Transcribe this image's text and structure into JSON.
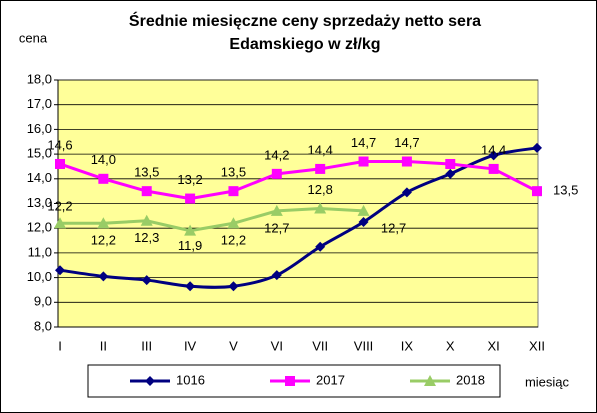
{
  "chart_data": {
    "type": "line",
    "title": "Średnie miesięczne ceny sprzedaży netto sera",
    "subtitle": "Edamskiego w zł/kg",
    "y_label": "cena",
    "x_label": "miesiąc",
    "categories": [
      "I",
      "II",
      "III",
      "IV",
      "V",
      "VI",
      "VII",
      "VIII",
      "IX",
      "X",
      "XI",
      "XII"
    ],
    "series": [
      {
        "name": "1016",
        "color": "#000080",
        "marker": "diamond",
        "smooth": true,
        "values": [
          10.3,
          10.05,
          9.9,
          9.65,
          9.65,
          10.1,
          11.25,
          12.25,
          13.45,
          14.2,
          14.95,
          15.25
        ]
      },
      {
        "name": "2017",
        "color": "#ff00ff",
        "marker": "square",
        "values": [
          14.6,
          14.0,
          13.5,
          13.2,
          13.5,
          14.2,
          14.4,
          14.7,
          14.7,
          14.6,
          14.4,
          13.5
        ],
        "value_labels": [
          "14,6",
          "14,0",
          "13,5",
          "13,2",
          "13,5",
          "14,2",
          "14,4",
          "14,7",
          "14,7",
          null,
          "14,4",
          "13,5"
        ]
      },
      {
        "name": "2018",
        "color": "#99cc66",
        "marker": "triangle",
        "values": [
          12.2,
          12.2,
          12.3,
          11.9,
          12.2,
          12.7,
          12.8,
          12.7,
          null,
          null,
          null,
          null
        ],
        "value_labels": [
          "12,2",
          "12,2",
          "12,3",
          "11,9",
          "12,2",
          "12,7",
          "12,8",
          "12,7",
          null,
          null,
          null,
          null
        ]
      }
    ],
    "ylim": [
      8,
      18
    ],
    "yticks": [
      {
        "value": 8,
        "label": "8,0"
      },
      {
        "value": 9,
        "label": "9,0"
      },
      {
        "value": 10,
        "label": "10,0"
      },
      {
        "value": 11,
        "label": "11,0"
      },
      {
        "value": 12,
        "label": "12,0"
      },
      {
        "value": 13,
        "label": "13,0"
      },
      {
        "value": 14,
        "label": "14,0"
      },
      {
        "value": 15,
        "label": "15,0"
      },
      {
        "value": 16,
        "label": "16,0"
      },
      {
        "value": 17,
        "label": "17,0"
      },
      {
        "value": 18,
        "label": "18,0"
      }
    ],
    "grid": true,
    "plot_background": "#ffff99",
    "legend": "bottom"
  }
}
